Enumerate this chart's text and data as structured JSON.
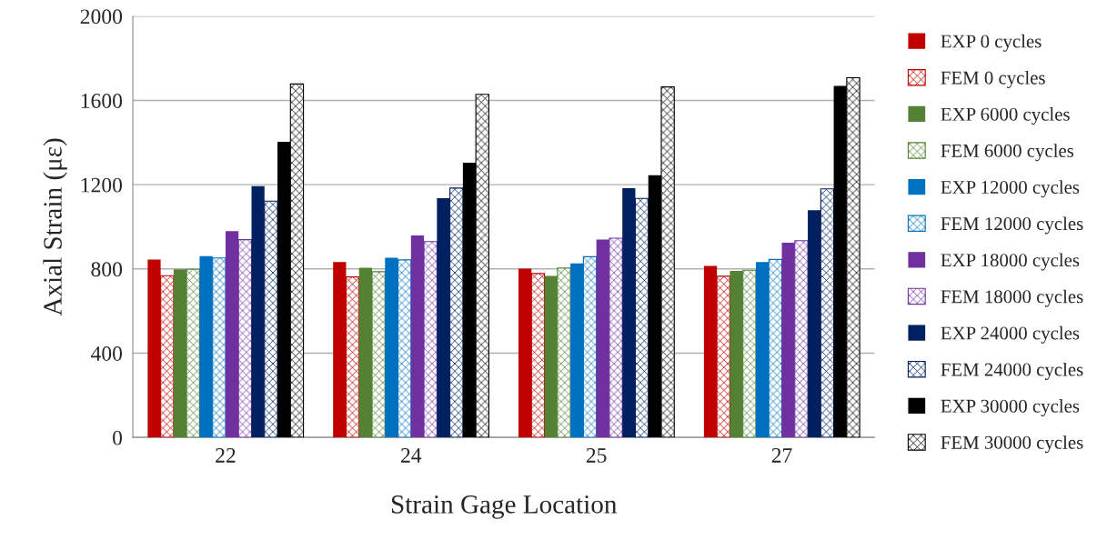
{
  "chart_data": {
    "type": "bar",
    "xlabel": "Strain Gage Location",
    "ylabel": "Axial Strain (με)",
    "categories": [
      "22",
      "24",
      "25",
      "27"
    ],
    "ylim": [
      0,
      2000
    ],
    "yticks": [
      0,
      400,
      800,
      1200,
      1600,
      2000
    ],
    "grid": "y",
    "legend": "right",
    "series": [
      {
        "name": "EXP 0 cycles",
        "color": "#c00000",
        "values": [
          845,
          833,
          801,
          814
        ]
      },
      {
        "name": "FEM 0 cycles",
        "color": "#c00000",
        "values": [
          768,
          762,
          778,
          765
        ]
      },
      {
        "name": "EXP 6000 cycles",
        "color": "#548235",
        "values": [
          798,
          806,
          767,
          791
        ]
      },
      {
        "name": "FEM 6000 cycles",
        "color": "#548235",
        "values": [
          798,
          787,
          804,
          794
        ]
      },
      {
        "name": "EXP 12000 cycles",
        "color": "#0070c0",
        "values": [
          861,
          853,
          826,
          833
        ]
      },
      {
        "name": "FEM 12000 cycles",
        "color": "#0070c0",
        "values": [
          852,
          843,
          858,
          845
        ]
      },
      {
        "name": "EXP 18000 cycles",
        "color": "#7030a0",
        "values": [
          979,
          959,
          940,
          924
        ]
      },
      {
        "name": "FEM 18000 cycles",
        "color": "#7030a0",
        "values": [
          939,
          930,
          946,
          934
        ]
      },
      {
        "name": "EXP 24000 cycles",
        "color": "#002060",
        "values": [
          1193,
          1136,
          1183,
          1079
        ]
      },
      {
        "name": "FEM 24000 cycles",
        "color": "#002060",
        "values": [
          1122,
          1184,
          1135,
          1180
        ]
      },
      {
        "name": "EXP 30000 cycles",
        "color": "#000000",
        "values": [
          1404,
          1304,
          1245,
          1669
        ]
      },
      {
        "name": "FEM 30000 cycles",
        "color": "#000000",
        "values": [
          1678,
          1629,
          1664,
          1708
        ]
      }
    ]
  }
}
